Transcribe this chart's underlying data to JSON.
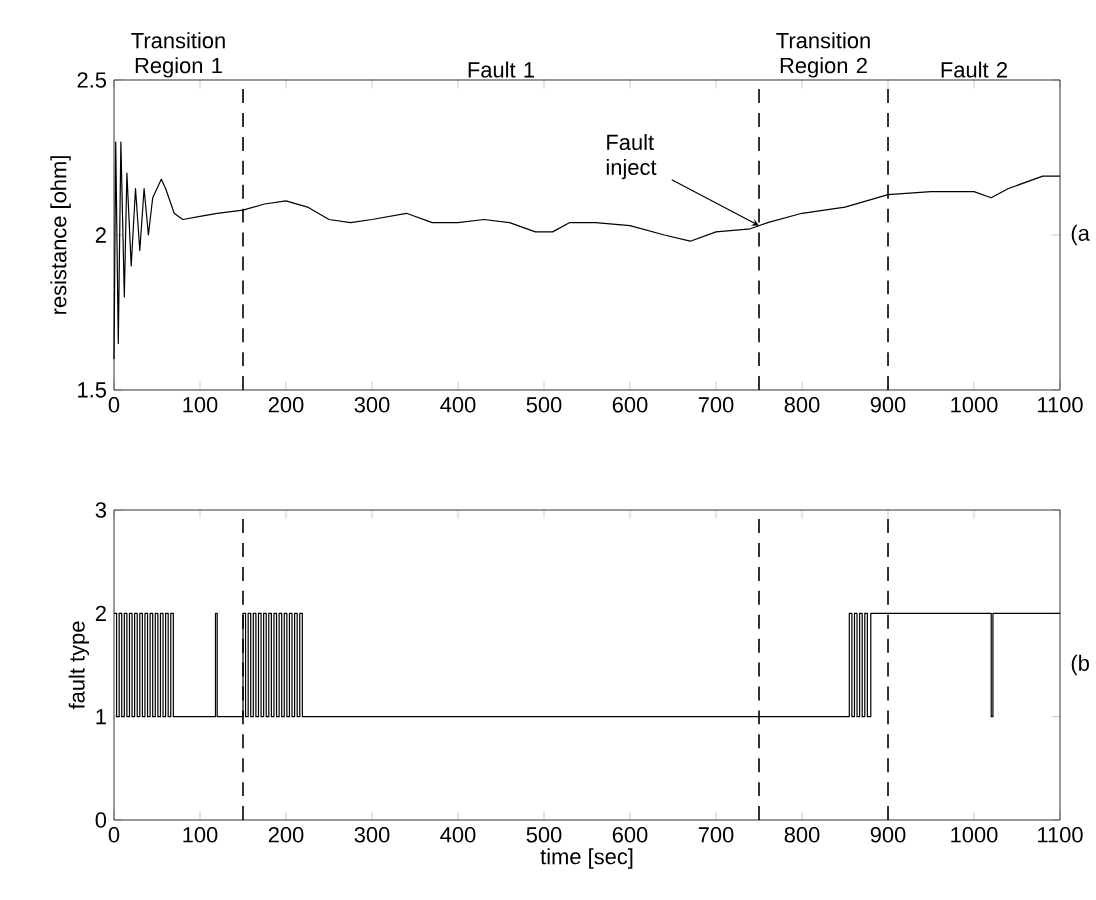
{
  "chart_data": [
    {
      "type": "line",
      "ylabel": "resistance [ohm]",
      "xlim": [
        0,
        1100
      ],
      "ylim": [
        1.5,
        2.5
      ],
      "xticks": [
        0,
        100,
        200,
        300,
        400,
        500,
        600,
        700,
        800,
        900,
        1000,
        1100
      ],
      "yticks": [
        1.5,
        2,
        2.5
      ],
      "grid": false,
      "series": [
        {
          "color": "#000000",
          "x": [
            0,
            2,
            5,
            8,
            12,
            15,
            20,
            25,
            30,
            35,
            40,
            45,
            50,
            55,
            60,
            70,
            80,
            100,
            120,
            150,
            175,
            200,
            225,
            250,
            275,
            300,
            340,
            370,
            400,
            430,
            460,
            490,
            510,
            530,
            560,
            600,
            640,
            670,
            700,
            740,
            760,
            800,
            850,
            900,
            950,
            980,
            1000,
            1020,
            1040,
            1080,
            1100
          ],
          "values": [
            1.6,
            2.3,
            1.65,
            2.3,
            1.8,
            2.2,
            1.9,
            2.15,
            1.95,
            2.15,
            2.0,
            2.12,
            2.15,
            2.18,
            2.15,
            2.07,
            2.05,
            2.06,
            2.07,
            2.08,
            2.1,
            2.11,
            2.09,
            2.05,
            2.04,
            2.05,
            2.07,
            2.04,
            2.04,
            2.05,
            2.04,
            2.01,
            2.01,
            2.04,
            2.04,
            2.03,
            2.0,
            1.98,
            2.01,
            2.02,
            2.04,
            2.07,
            2.09,
            2.13,
            2.14,
            2.14,
            2.14,
            2.12,
            2.15,
            2.19,
            2.19
          ]
        }
      ],
      "ref_lines": [
        {
          "axis": "x",
          "value": 150,
          "line_style": "dashed"
        },
        {
          "axis": "x",
          "value": 750,
          "line_style": "dashed"
        },
        {
          "axis": "x",
          "value": 900,
          "line_style": "dashed"
        }
      ],
      "annotations": [
        "Transition Region 1",
        "Fault 1",
        "Transition Region 2",
        "Fault 2",
        {
          "text": "Fault inject",
          "x": 750,
          "y": 2.03
        },
        "(a"
      ]
    },
    {
      "type": "step",
      "xlabel": "time [sec]",
      "ylabel": "fault type",
      "xlim": [
        0,
        1100
      ],
      "ylim": [
        0,
        3
      ],
      "xticks": [
        0,
        100,
        200,
        300,
        400,
        500,
        600,
        700,
        800,
        900,
        1000,
        1100
      ],
      "yticks": [
        0,
        1,
        2,
        3
      ],
      "grid": false,
      "series": [
        {
          "color": "#000000",
          "x": [
            0,
            3,
            6,
            9,
            12,
            15,
            18,
            21,
            24,
            27,
            30,
            33,
            36,
            39,
            42,
            45,
            48,
            51,
            54,
            57,
            60,
            63,
            66,
            69,
            118,
            120,
            150,
            153,
            156,
            159,
            162,
            165,
            168,
            171,
            174,
            177,
            180,
            183,
            186,
            189,
            192,
            195,
            198,
            201,
            204,
            207,
            210,
            213,
            216,
            219,
            855,
            858,
            861,
            864,
            867,
            870,
            873,
            876,
            880,
            1020,
            1022,
            1100
          ],
          "values": [
            2,
            1,
            2,
            1,
            2,
            1,
            2,
            1,
            2,
            1,
            2,
            1,
            2,
            1,
            2,
            1,
            2,
            1,
            2,
            1,
            2,
            1,
            2,
            1,
            2,
            1,
            2,
            1,
            2,
            1,
            2,
            1,
            2,
            1,
            2,
            1,
            2,
            1,
            2,
            1,
            2,
            1,
            2,
            1,
            2,
            1,
            2,
            1,
            2,
            1,
            2,
            1,
            2,
            1,
            2,
            1,
            2,
            1,
            2,
            1,
            2,
            2
          ]
        }
      ],
      "ref_lines": [
        {
          "axis": "x",
          "value": 150,
          "line_style": "dashed"
        },
        {
          "axis": "x",
          "value": 750,
          "line_style": "dashed"
        },
        {
          "axis": "x",
          "value": 900,
          "line_style": "dashed"
        }
      ],
      "annotations": [
        "(b"
      ]
    }
  ]
}
